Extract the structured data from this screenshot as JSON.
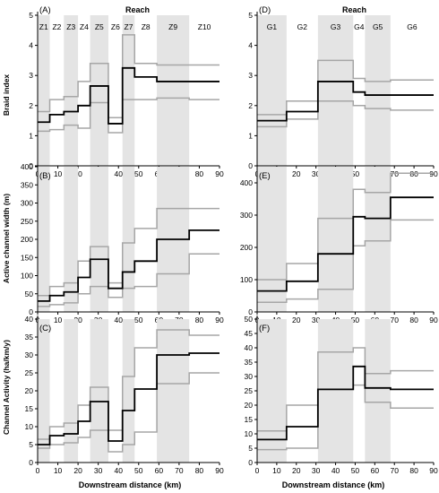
{
  "figure": {
    "xlabel": "Downstream distance (km)",
    "reach_label": "Reach",
    "ylabels": [
      "Braid index",
      "Active channel width (m)",
      "Channel Activity (ha/km/y)"
    ]
  },
  "chart_data": [
    {
      "type": "line",
      "panel": "(A)",
      "column": "left",
      "row": 0,
      "xlim": [
        0,
        90
      ],
      "ylim": [
        0,
        5
      ],
      "xticks": [
        0,
        10,
        20,
        30,
        40,
        50,
        60,
        70,
        80,
        90
      ],
      "yticks": [
        0,
        1,
        2,
        3,
        4,
        5
      ],
      "zones": [
        {
          "label": "Z1",
          "x0": 0,
          "x1": 6,
          "shaded": true
        },
        {
          "label": "Z2",
          "x0": 6,
          "x1": 13,
          "shaded": false
        },
        {
          "label": "Z3",
          "x0": 13,
          "x1": 20,
          "shaded": true
        },
        {
          "label": "Z4",
          "x0": 20,
          "x1": 26,
          "shaded": false
        },
        {
          "label": "Z5",
          "x0": 26,
          "x1": 35,
          "shaded": true
        },
        {
          "label": "Z6",
          "x0": 35,
          "x1": 42,
          "shaded": false
        },
        {
          "label": "Z7",
          "x0": 42,
          "x1": 48,
          "shaded": true
        },
        {
          "label": "Z8",
          "x0": 48,
          "x1": 59,
          "shaded": false
        },
        {
          "label": "Z9",
          "x0": 59,
          "x1": 75,
          "shaded": true
        },
        {
          "label": "Z10",
          "x0": 75,
          "x1": 90,
          "shaded": false
        }
      ],
      "series": [
        {
          "role": "upper",
          "values": [
            1.8,
            2.2,
            2.3,
            2.8,
            3.4,
            1.6,
            4.35,
            3.4,
            3.35,
            3.35
          ]
        },
        {
          "role": "mean",
          "values": [
            1.45,
            1.7,
            1.8,
            2.0,
            2.65,
            1.4,
            3.25,
            2.95,
            2.8,
            2.8
          ]
        },
        {
          "role": "lower",
          "values": [
            1.15,
            1.2,
            1.35,
            1.25,
            2.1,
            1.1,
            2.2,
            2.2,
            2.25,
            2.2
          ]
        }
      ]
    },
    {
      "type": "line",
      "panel": "(B)",
      "column": "left",
      "row": 1,
      "xlim": [
        0,
        90
      ],
      "ylim": [
        0,
        400
      ],
      "xticks": [
        0,
        10,
        20,
        30,
        40,
        50,
        60,
        70,
        80,
        90
      ],
      "yticks": [
        0,
        50,
        100,
        150,
        200,
        250,
        300,
        350,
        400
      ],
      "zones": [
        {
          "x0": 0,
          "x1": 6,
          "shaded": true
        },
        {
          "x0": 6,
          "x1": 13,
          "shaded": false
        },
        {
          "x0": 13,
          "x1": 20,
          "shaded": true
        },
        {
          "x0": 20,
          "x1": 26,
          "shaded": false
        },
        {
          "x0": 26,
          "x1": 35,
          "shaded": true
        },
        {
          "x0": 35,
          "x1": 42,
          "shaded": false
        },
        {
          "x0": 42,
          "x1": 48,
          "shaded": true
        },
        {
          "x0": 48,
          "x1": 59,
          "shaded": false
        },
        {
          "x0": 59,
          "x1": 75,
          "shaded": true
        },
        {
          "x0": 75,
          "x1": 90,
          "shaded": false
        }
      ],
      "series": [
        {
          "role": "upper",
          "values": [
            45,
            70,
            80,
            140,
            180,
            80,
            190,
            230,
            285,
            285
          ]
        },
        {
          "role": "mean",
          "values": [
            30,
            45,
            55,
            95,
            145,
            65,
            110,
            140,
            200,
            225
          ]
        },
        {
          "role": "lower",
          "values": [
            15,
            20,
            25,
            50,
            70,
            40,
            65,
            70,
            105,
            160
          ]
        }
      ]
    },
    {
      "type": "line",
      "panel": "(C)",
      "column": "left",
      "row": 2,
      "xlim": [
        0,
        90
      ],
      "ylim": [
        0,
        40
      ],
      "xticks": [
        0,
        10,
        20,
        30,
        40,
        50,
        60,
        70,
        80,
        90
      ],
      "yticks": [
        0,
        5,
        10,
        15,
        20,
        25,
        30,
        35,
        40
      ],
      "zones": [
        {
          "x0": 0,
          "x1": 6,
          "shaded": true
        },
        {
          "x0": 6,
          "x1": 13,
          "shaded": false
        },
        {
          "x0": 13,
          "x1": 20,
          "shaded": true
        },
        {
          "x0": 20,
          "x1": 26,
          "shaded": false
        },
        {
          "x0": 26,
          "x1": 35,
          "shaded": true
        },
        {
          "x0": 35,
          "x1": 42,
          "shaded": false
        },
        {
          "x0": 42,
          "x1": 48,
          "shaded": true
        },
        {
          "x0": 48,
          "x1": 59,
          "shaded": false
        },
        {
          "x0": 59,
          "x1": 75,
          "shaded": true
        },
        {
          "x0": 75,
          "x1": 90,
          "shaded": false
        }
      ],
      "series": [
        {
          "role": "upper",
          "values": [
            6.5,
            10,
            11,
            16,
            21,
            9,
            24,
            32,
            37,
            35.5
          ]
        },
        {
          "role": "mean",
          "values": [
            5,
            7.5,
            8,
            11.5,
            17,
            6,
            14.5,
            20.5,
            30,
            30.5
          ]
        },
        {
          "role": "lower",
          "values": [
            4,
            5,
            5.5,
            7,
            9,
            3,
            5,
            8.5,
            22,
            25
          ]
        }
      ]
    },
    {
      "type": "line",
      "panel": "(D)",
      "column": "right",
      "row": 0,
      "xlim": [
        0,
        90
      ],
      "ylim": [
        0,
        5
      ],
      "xticks": [
        0,
        10,
        20,
        30,
        40,
        50,
        60,
        70,
        80,
        90
      ],
      "yticks": [
        0,
        1,
        2,
        3,
        4,
        5
      ],
      "zones": [
        {
          "label": "G1",
          "x0": 0,
          "x1": 15,
          "shaded": true
        },
        {
          "label": "G2",
          "x0": 15,
          "x1": 31,
          "shaded": false
        },
        {
          "label": "G3",
          "x0": 31,
          "x1": 49,
          "shaded": true
        },
        {
          "label": "G4",
          "x0": 49,
          "x1": 55,
          "shaded": false
        },
        {
          "label": "G5",
          "x0": 55,
          "x1": 68,
          "shaded": true
        },
        {
          "label": "G6",
          "x0": 68,
          "x1": 90,
          "shaded": false
        }
      ],
      "series": [
        {
          "role": "upper",
          "values": [
            1.7,
            2.15,
            3.5,
            2.9,
            2.8,
            2.85
          ]
        },
        {
          "role": "mean",
          "values": [
            1.5,
            1.8,
            2.8,
            2.45,
            2.35,
            2.35
          ]
        },
        {
          "role": "lower",
          "values": [
            1.3,
            1.55,
            2.15,
            2.0,
            1.9,
            1.85
          ]
        }
      ]
    },
    {
      "type": "line",
      "panel": "(E)",
      "column": "right",
      "row": 1,
      "xlim": [
        0,
        90
      ],
      "ylim": [
        0,
        450
      ],
      "xticks": [
        0,
        10,
        20,
        30,
        40,
        50,
        60,
        70,
        80,
        90
      ],
      "yticks": [
        0,
        100,
        200,
        300,
        400
      ],
      "zones": [
        {
          "x0": 0,
          "x1": 15,
          "shaded": true
        },
        {
          "x0": 15,
          "x1": 31,
          "shaded": false
        },
        {
          "x0": 31,
          "x1": 49,
          "shaded": true
        },
        {
          "x0": 49,
          "x1": 55,
          "shaded": false
        },
        {
          "x0": 55,
          "x1": 68,
          "shaded": true
        },
        {
          "x0": 68,
          "x1": 90,
          "shaded": false
        }
      ],
      "series": [
        {
          "role": "upper",
          "values": [
            100,
            150,
            290,
            380,
            370,
            430
          ]
        },
        {
          "role": "mean",
          "values": [
            65,
            95,
            180,
            295,
            290,
            355
          ]
        },
        {
          "role": "lower",
          "values": [
            30,
            40,
            70,
            205,
            220,
            285
          ]
        }
      ]
    },
    {
      "type": "line",
      "panel": "(F)",
      "column": "right",
      "row": 2,
      "xlim": [
        0,
        90
      ],
      "ylim": [
        0,
        50
      ],
      "xticks": [
        0,
        10,
        20,
        30,
        40,
        50,
        60,
        70,
        80,
        90
      ],
      "yticks": [
        0,
        5,
        10,
        15,
        20,
        25,
        30,
        35,
        40,
        45,
        50
      ],
      "zones": [
        {
          "x0": 0,
          "x1": 15,
          "shaded": true
        },
        {
          "x0": 15,
          "x1": 31,
          "shaded": false
        },
        {
          "x0": 31,
          "x1": 49,
          "shaded": true
        },
        {
          "x0": 49,
          "x1": 55,
          "shaded": false
        },
        {
          "x0": 55,
          "x1": 68,
          "shaded": true
        },
        {
          "x0": 68,
          "x1": 90,
          "shaded": false
        }
      ],
      "series": [
        {
          "role": "upper",
          "values": [
            11,
            20,
            38.5,
            40,
            31,
            32
          ]
        },
        {
          "role": "mean",
          "values": [
            8,
            12.5,
            25.5,
            33.5,
            26,
            25.5
          ]
        },
        {
          "role": "lower",
          "values": [
            4.5,
            5,
            25.5,
            27,
            21,
            19
          ]
        }
      ]
    }
  ],
  "colors": {
    "mean": "#000000",
    "bounds": "#a6a6a6",
    "shade": "#e4e4e4",
    "axis": "#000000"
  }
}
